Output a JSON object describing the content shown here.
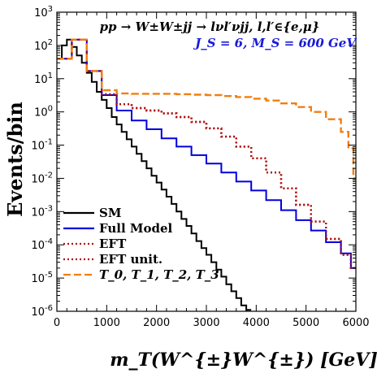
{
  "chart_data": {
    "type": "line",
    "xlabel": "m_T(W^{±}W^{±}) [GeV]",
    "ylabel": "Events/bin",
    "xlim": [
      0,
      6000
    ],
    "ylim": [
      1e-06,
      1000
    ],
    "yscale": "log",
    "xticks": [
      "0",
      "1000",
      "2000",
      "3000",
      "4000",
      "5000",
      "6000"
    ],
    "yticks": [
      "10-6",
      "10-5",
      "10-4",
      "10-3",
      "10-2",
      "10-1",
      "10^0",
      "10^1",
      "10^2",
      "10^3"
    ],
    "annotation_process": "pp → W±W±jj → lνl′νjj, l,l′∈{e,μ}",
    "annotation_params": "J_S = 6, M_S = 600 GeV",
    "legend_position": "bottom-left",
    "bin_width": 100,
    "series": [
      {
        "name": "SM",
        "color": "#000000",
        "style": "solid",
        "x": [
          0,
          100,
          200,
          300,
          400,
          500,
          600,
          700,
          800,
          900,
          1000,
          1100,
          1200,
          1300,
          1400,
          1500,
          1600,
          1700,
          1800,
          1900,
          2000,
          2100,
          2200,
          2300,
          2400,
          2500,
          2600,
          2700,
          2800,
          2900,
          3000,
          3100,
          3200,
          3300,
          3400,
          3500,
          3600,
          3700,
          3800
        ],
        "values": [
          40,
          100,
          150,
          90,
          50,
          30,
          15,
          8,
          4,
          2.3,
          1.3,
          0.7,
          0.42,
          0.25,
          0.15,
          0.09,
          0.055,
          0.033,
          0.02,
          0.012,
          0.0075,
          0.0046,
          0.0028,
          0.0017,
          0.001,
          0.0006,
          0.00037,
          0.00022,
          0.00013,
          8e-05,
          5e-05,
          3e-05,
          1.8e-05,
          1.1e-05,
          6.5e-06,
          4e-06,
          2.5e-06,
          1.5e-06,
          1.1e-06
        ]
      },
      {
        "name": "Full Model",
        "color": "#0000dd",
        "style": "solid",
        "x": [
          0,
          300,
          600,
          900,
          1200,
          1500,
          1800,
          2100,
          2400,
          2700,
          3000,
          3300,
          3600,
          3900,
          4200,
          4500,
          4800,
          5100,
          5400,
          5700,
          5900
        ],
        "values": [
          40,
          150,
          17,
          3.2,
          1.1,
          0.55,
          0.3,
          0.16,
          0.09,
          0.05,
          0.028,
          0.015,
          0.008,
          0.0043,
          0.0022,
          0.0011,
          0.00055,
          0.00027,
          0.00012,
          5.5e-05,
          2e-05
        ]
      },
      {
        "name": "EFT",
        "color": "#b01010",
        "style": "dotted",
        "x": [
          0,
          300,
          600,
          900,
          1200,
          1500,
          1800,
          2100,
          2400,
          2700,
          3000,
          3300,
          3600,
          3900,
          4200,
          4500,
          4800,
          5100,
          5400,
          5700,
          5900
        ],
        "values": [
          40,
          150,
          17,
          3.4,
          1.7,
          1.3,
          1.1,
          0.9,
          0.7,
          0.5,
          0.32,
          0.18,
          0.09,
          0.04,
          0.015,
          0.005,
          0.0016,
          0.0005,
          0.00015,
          5e-05,
          2e-05
        ]
      },
      {
        "name": "EFT unit.",
        "color": "#b01010",
        "style": "dotted",
        "x": [
          0,
          300,
          600,
          900,
          1200,
          1500,
          1800,
          2100,
          2400,
          2700,
          3000,
          3300,
          3600,
          3900,
          4200,
          4500,
          4800,
          5100,
          5400,
          5700,
          5900
        ],
        "values": [
          40,
          150,
          17,
          3.4,
          1.7,
          1.3,
          1.1,
          0.9,
          0.7,
          0.5,
          0.32,
          0.18,
          0.09,
          0.04,
          0.015,
          0.005,
          0.0016,
          0.0005,
          0.00015,
          5e-05,
          2e-05
        ]
      },
      {
        "name": "T_0, T_1, T_2, T_3",
        "color": "#f07f10",
        "style": "dashed",
        "x": [
          0,
          300,
          600,
          900,
          1200,
          1500,
          1800,
          2100,
          2400,
          2700,
          3000,
          3300,
          3600,
          3900,
          4200,
          4500,
          4800,
          5100,
          5400,
          5700,
          5850,
          5950
        ],
        "values": [
          40,
          150,
          17,
          4.5,
          3.6,
          3.5,
          3.5,
          3.5,
          3.4,
          3.3,
          3.2,
          3.0,
          2.8,
          2.5,
          2.2,
          1.8,
          1.4,
          1.0,
          0.6,
          0.25,
          0.08,
          0.01
        ]
      }
    ]
  }
}
